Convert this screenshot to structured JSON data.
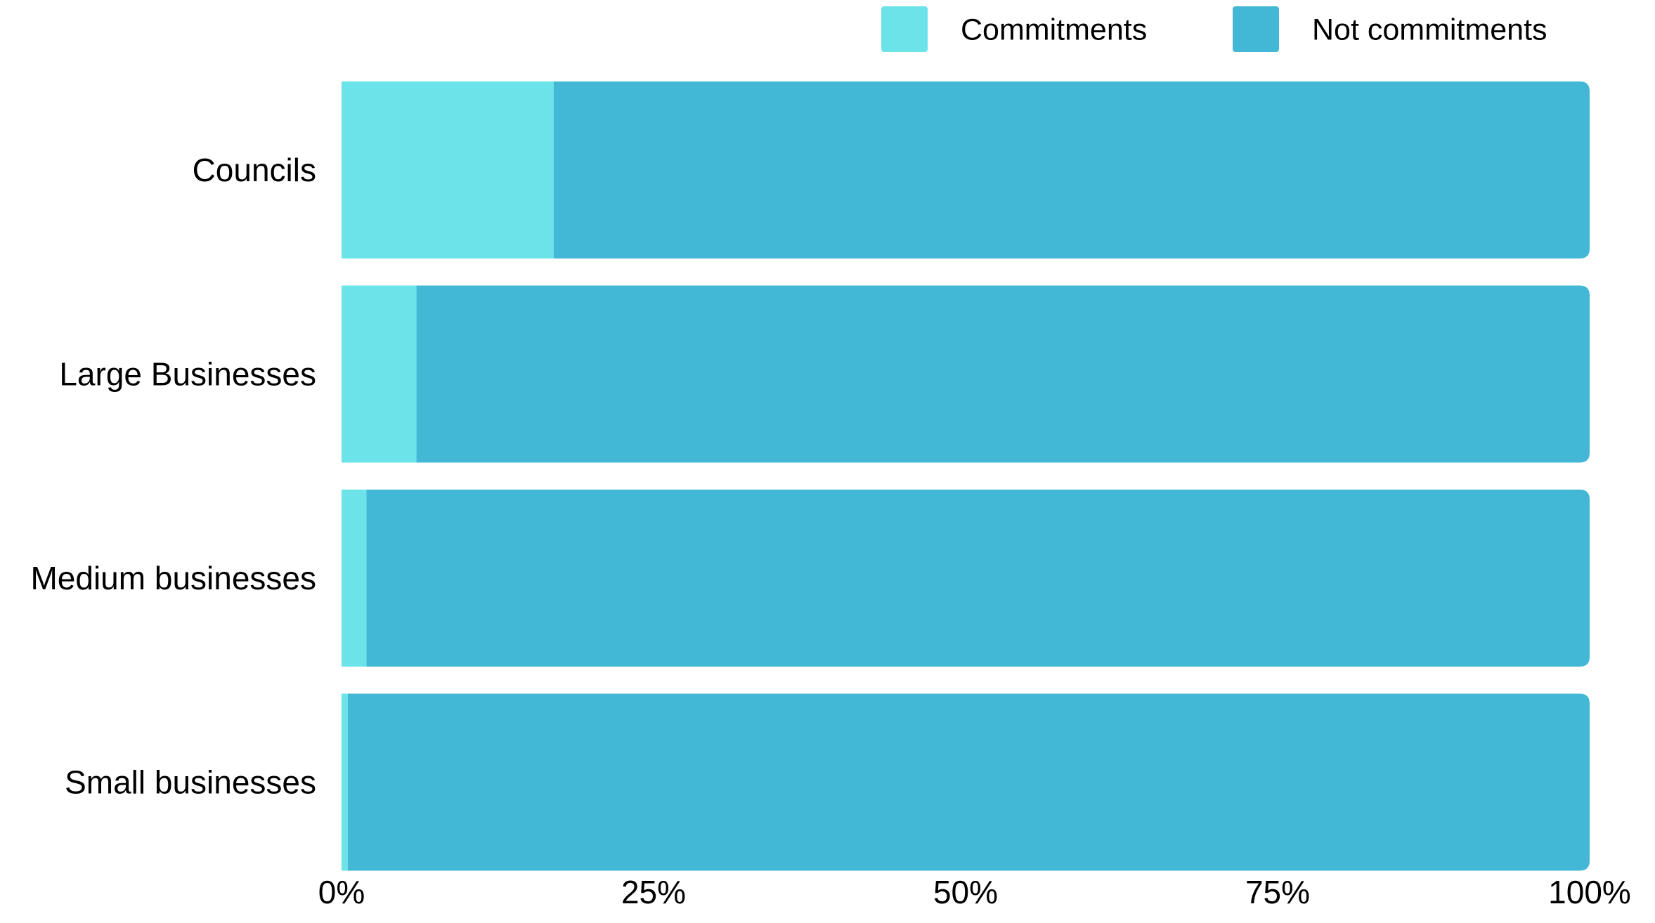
{
  "chart_data": {
    "type": "bar",
    "orientation": "horizontal",
    "stacked": true,
    "normalized_percent": true,
    "categories": [
      "Councils",
      "Large Businesses",
      "Medium businesses",
      "Small businesses"
    ],
    "series": [
      {
        "name": "Commitments",
        "color": "#6BE3E8",
        "values": [
          17,
          6,
          2,
          0.5
        ]
      },
      {
        "name": "Not commitments",
        "color": "#42B7D6",
        "values": [
          83,
          94,
          98,
          99.5
        ]
      }
    ],
    "xlim": [
      0,
      100
    ],
    "x_ticks": [
      "0%",
      "25%",
      "50%",
      "75%",
      "100%"
    ],
    "title": "",
    "xlabel": "",
    "ylabel": "",
    "grid": false,
    "legend_position": "top-right"
  }
}
